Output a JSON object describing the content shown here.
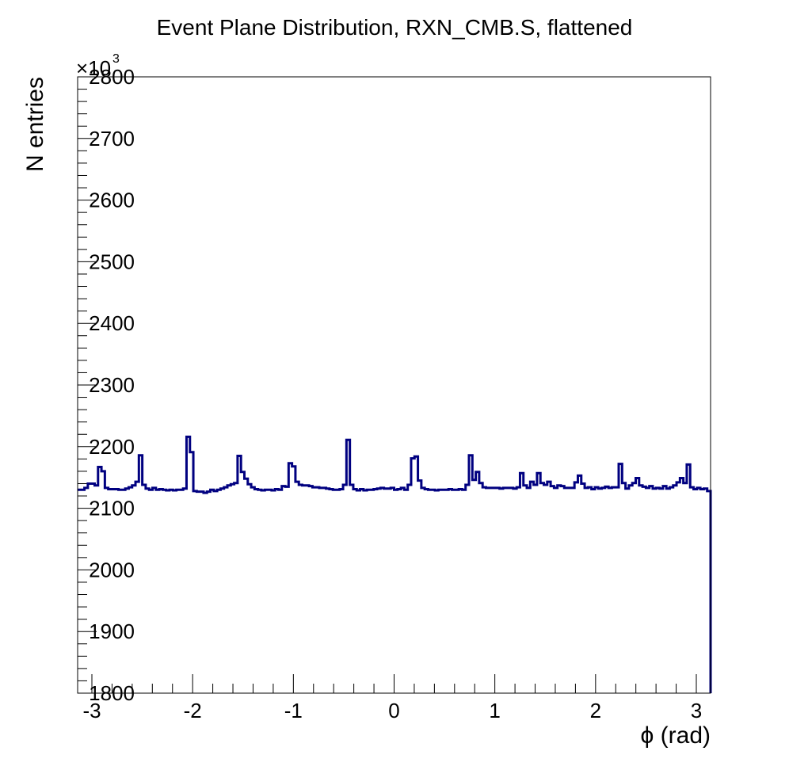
{
  "chart_data": {
    "type": "histogram",
    "title": "Event Plane Distribution, RXN_CMB.S, flattened",
    "xlabel": "ϕ (rad)",
    "ylabel": "N entries",
    "y_multiplier_label": "×10",
    "y_multiplier_exponent": "3",
    "xlim": [
      -3.1416,
      3.1416
    ],
    "ylim": [
      1800,
      2800
    ],
    "x_tick_labels": [
      "-3",
      "-2",
      "-1",
      "0",
      "1",
      "2",
      "3"
    ],
    "y_tick_labels": [
      "1800",
      "1900",
      "2000",
      "2100",
      "2200",
      "2300",
      "2400",
      "2500",
      "2600",
      "2700",
      "2800"
    ],
    "grid": false,
    "line_color": "#000080",
    "series": [
      {
        "values": [
          2130,
          2130,
          2133,
          2140,
          2140,
          2137,
          2167,
          2160,
          2133,
          2131,
          2131,
          2131,
          2130,
          2130,
          2132,
          2134,
          2137,
          2143,
          2186,
          2138,
          2132,
          2130,
          2133,
          2130,
          2131,
          2130,
          2129,
          2130,
          2129,
          2130,
          2130,
          2132,
          2216,
          2191,
          2128,
          2127,
          2127,
          2125,
          2127,
          2130,
          2128,
          2130,
          2132,
          2134,
          2137,
          2139,
          2141,
          2185,
          2159,
          2148,
          2139,
          2134,
          2131,
          2130,
          2129,
          2130,
          2130,
          2129,
          2131,
          2130,
          2136,
          2135,
          2173,
          2168,
          2143,
          2138,
          2137,
          2137,
          2136,
          2134,
          2134,
          2133,
          2133,
          2132,
          2131,
          2130,
          2130,
          2131,
          2138,
          2211,
          2138,
          2131,
          2129,
          2131,
          2129,
          2130,
          2130,
          2131,
          2132,
          2133,
          2132,
          2132,
          2133,
          2130,
          2131,
          2133,
          2130,
          2138,
          2181,
          2184,
          2145,
          2133,
          2131,
          2130,
          2130,
          2129,
          2130,
          2130,
          2130,
          2131,
          2130,
          2130,
          2131,
          2130,
          2138,
          2186,
          2146,
          2159,
          2141,
          2134,
          2133,
          2133,
          2133,
          2133,
          2132,
          2133,
          2133,
          2133,
          2132,
          2134,
          2157,
          2137,
          2133,
          2143,
          2138,
          2157,
          2141,
          2138,
          2143,
          2136,
          2133,
          2137,
          2136,
          2133,
          2133,
          2133,
          2142,
          2153,
          2140,
          2133,
          2134,
          2131,
          2134,
          2132,
          2133,
          2135,
          2133,
          2134,
          2134,
          2172,
          2141,
          2132,
          2137,
          2141,
          2149,
          2137,
          2135,
          2133,
          2136,
          2132,
          2133,
          2132,
          2136,
          2132,
          2134,
          2137,
          2142,
          2149,
          2141,
          2171,
          2134,
          2131,
          2133,
          2131,
          2132,
          2128
        ]
      }
    ]
  }
}
